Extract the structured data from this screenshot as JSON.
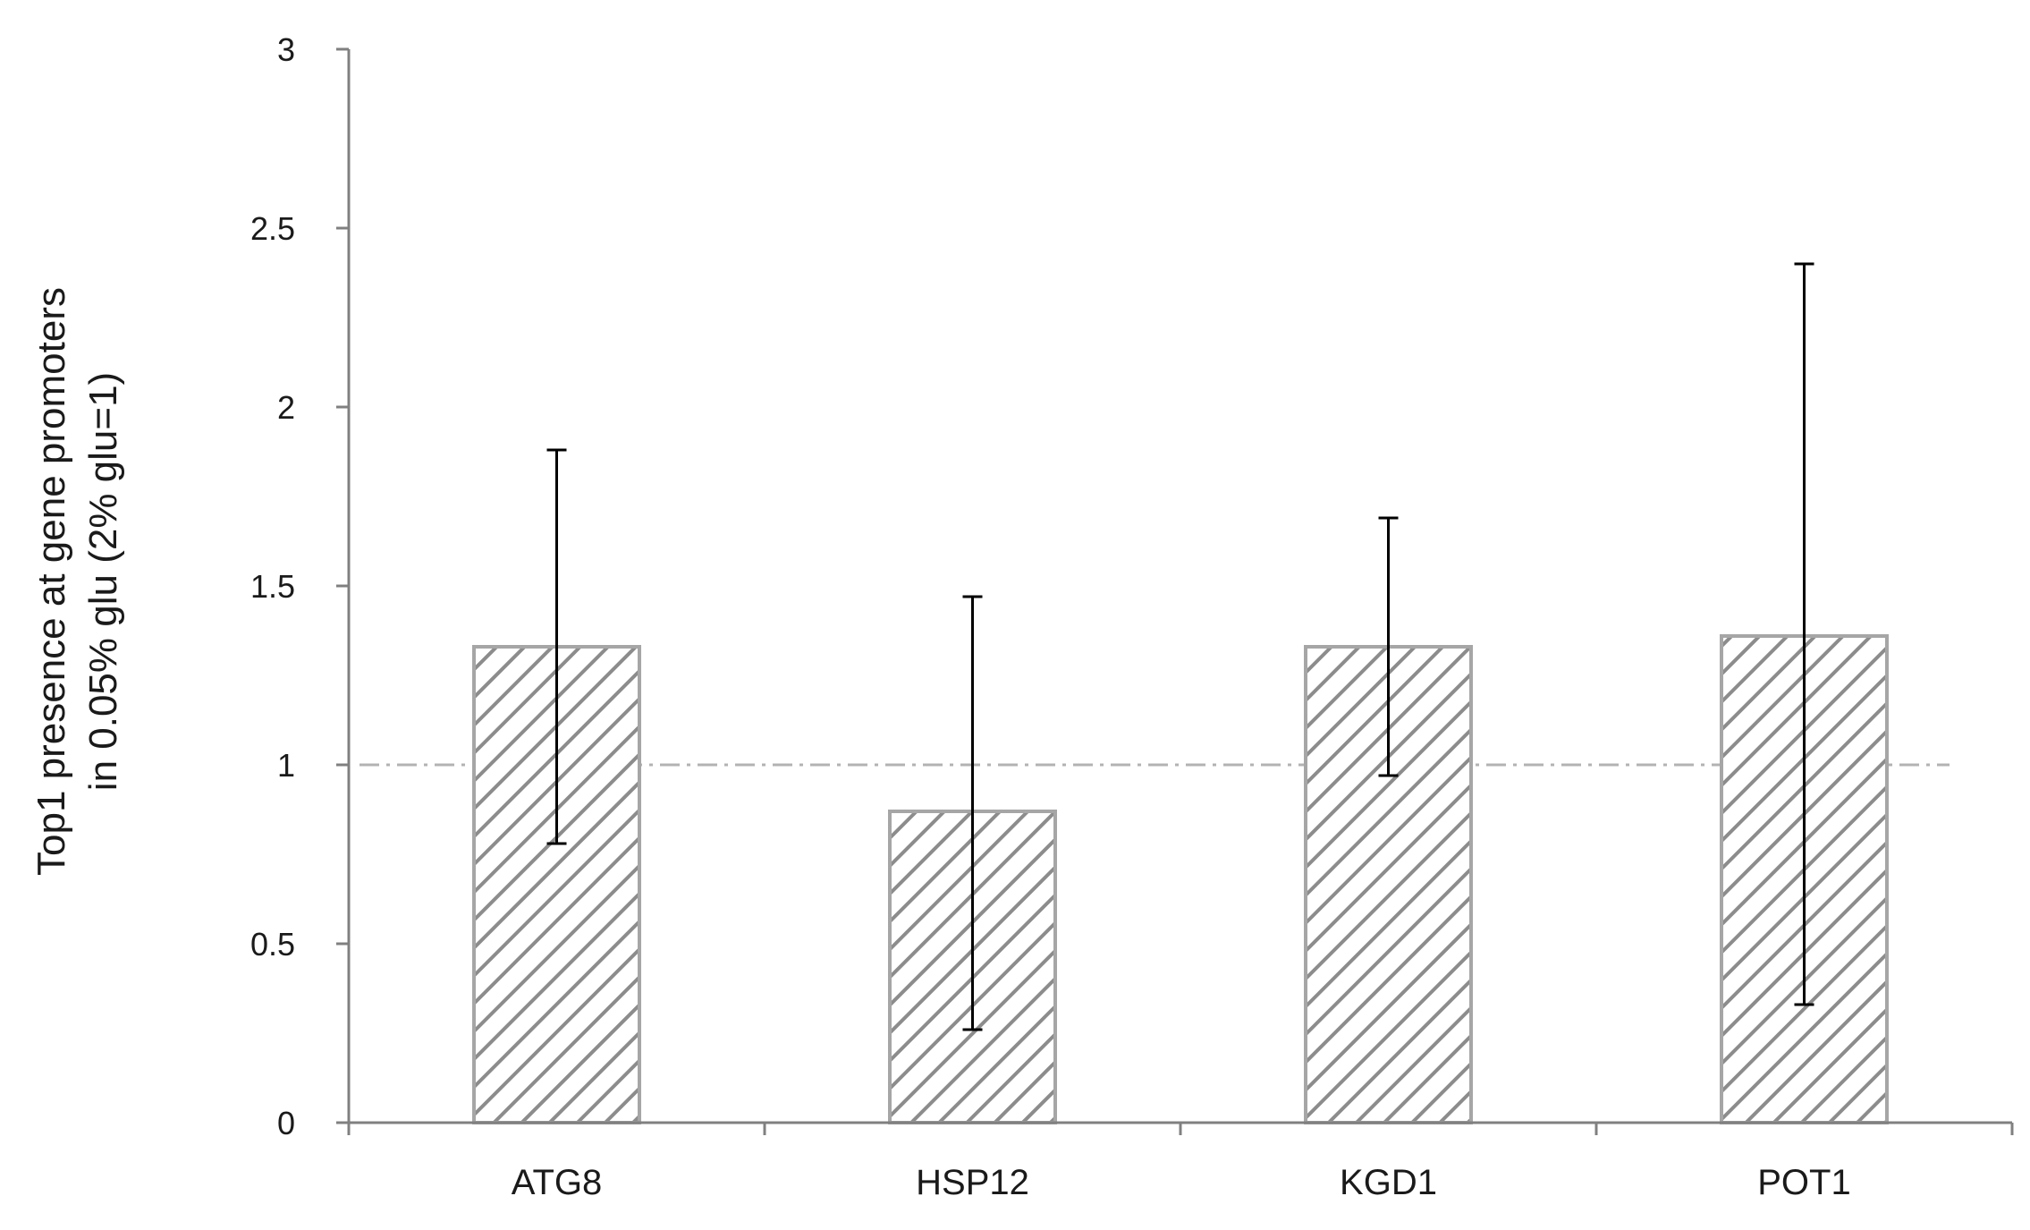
{
  "chart_data": {
    "type": "bar",
    "categories": [
      "ATG8",
      "HSP12",
      "KGD1",
      "POT1"
    ],
    "values": [
      1.33,
      0.87,
      1.33,
      1.36
    ],
    "error_low": [
      0.78,
      0.26,
      0.97,
      0.33
    ],
    "error_high": [
      1.88,
      1.47,
      1.69,
      2.4
    ],
    "ylabel_lines": [
      "Top1 presence at gene promoters",
      "in 0.05% glu  (2% glu=1)"
    ],
    "ylim": [
      0,
      3
    ],
    "yticks": [
      0,
      0.5,
      1,
      1.5,
      2,
      2.5,
      3
    ],
    "reference_line": 1,
    "grid": false,
    "legend": "none",
    "bar_pattern": "diagonal-hatch",
    "colors": {
      "bar_stroke": "#a6a6a6",
      "hatch": "#8c8c8c",
      "axis": "#808080",
      "error_bar": "#000000",
      "reference_line": "#b3b3b3"
    }
  }
}
